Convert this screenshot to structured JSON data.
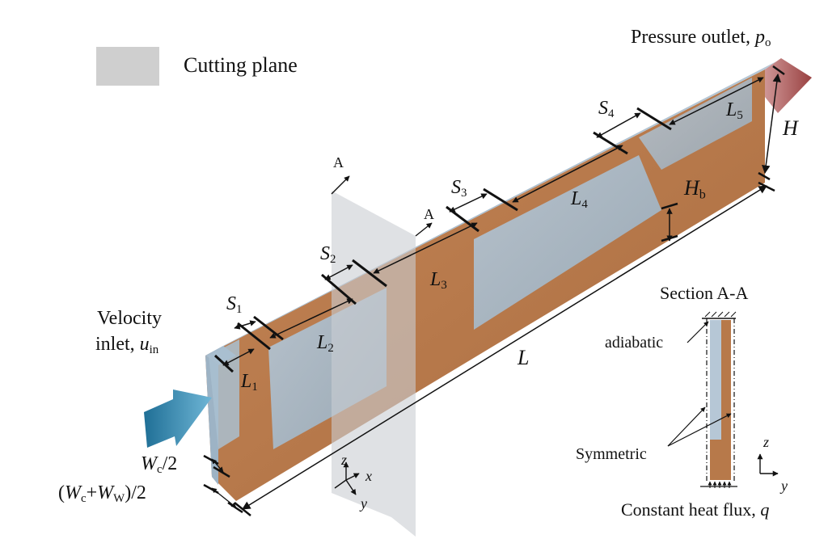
{
  "legend": {
    "label": "Cutting plane",
    "swatch_color": "#cfcfcf"
  },
  "colors": {
    "copper": "#b7794a",
    "channel": "#a9bfd0",
    "inlet_arrow": "#3c8fb4",
    "outlet_arrow": "#b04545",
    "cut_plane": "#c9cdd2"
  },
  "labels": {
    "pressure_outlet": "Pressure outlet, ",
    "p_sym": "p",
    "p_sub": "o",
    "H": "H",
    "Hb": "H",
    "Hb_sub": "b",
    "L": "L",
    "L1": "L",
    "L1_sub": "1",
    "L2": "L",
    "L2_sub": "2",
    "L3": "L",
    "L3_sub": "3",
    "L4": "L",
    "L4_sub": "4",
    "L5": "L",
    "L5_sub": "5",
    "S1": "S",
    "S1_sub": "1",
    "S2": "S",
    "S2_sub": "2",
    "S3": "S",
    "S3_sub": "3",
    "S4": "S",
    "S4_sub": "4",
    "A_upper": "A",
    "A_lower": "A",
    "velocity_line1": "Velocity",
    "velocity_line2": "inlet, ",
    "u_sym": "u",
    "u_sub": "in",
    "wc_half": "/2",
    "wc_sym": "W",
    "wc_sub": "c",
    "wcw_open": "(",
    "wcw_w1": "W",
    "wcw_sub1": "c",
    "wcw_plus": "+",
    "wcw_w2": "W",
    "wcw_sub2": "W",
    "wcw_close": ")/2",
    "section": "Section A-A",
    "adiabatic": "adiabatic",
    "symmetric": "Symmetric",
    "heat_flux": "Constant heat flux, ",
    "q_sym": "q",
    "axis_x": "x",
    "axis_y": "y",
    "axis_z": "z",
    "axis2_y": "y",
    "axis2_z": "z"
  }
}
